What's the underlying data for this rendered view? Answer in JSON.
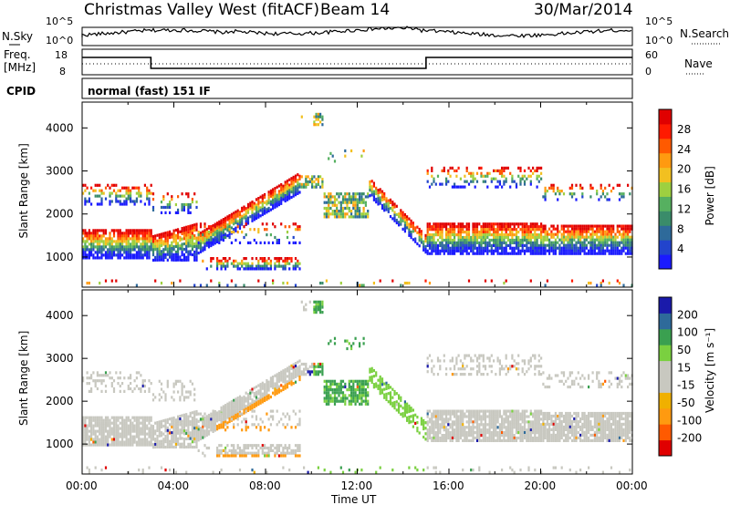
{
  "header": {
    "station": "Christmas Valley West (fitACF)",
    "beam": "Beam 14",
    "date": "30/Mar/2014"
  },
  "noise_panel": {
    "left_label": "N.Sky",
    "right_label": "N.Search",
    "left_ticks": [
      "10^5",
      "10^0"
    ],
    "right_ticks": [
      "10^5",
      "10^0"
    ]
  },
  "freq_panel": {
    "left_label_1": "Freq.",
    "left_label_2": "[MHz]",
    "right_label": "Nave",
    "left_ticks": [
      "18",
      "8"
    ],
    "right_ticks": [
      "60",
      "0"
    ]
  },
  "cpid": {
    "label": "CPID",
    "value": "normal (fast) 151 IF"
  },
  "colors": {
    "power_scale": [
      "#1a1aff",
      "#2244cc",
      "#2e6a9a",
      "#3a8c6a",
      "#56b060",
      "#9ed040",
      "#f2c020",
      "#ff9a10",
      "#ff5a00",
      "#ff1a00",
      "#e00000"
    ],
    "velocity_scale": [
      "#e00000",
      "#ff5a00",
      "#ff9a10",
      "#f0b000",
      "#c8c8c0",
      "#c8c8c0",
      "#7ad040",
      "#3aa050",
      "#2e6a9a",
      "#1a1aaa"
    ]
  },
  "chart_data": [
    {
      "type": "heatmap",
      "name_hint": "power",
      "ylabel": "Slant Range [km]",
      "yticks": [
        1000,
        2000,
        3000,
        4000
      ],
      "ylim": [
        300,
        4600
      ],
      "xlim": [
        0,
        24
      ],
      "colorbar": {
        "label": "Power [dB]",
        "ticks": [
          "4",
          "8",
          "12",
          "16",
          "20",
          "24",
          "28"
        ],
        "range": [
          0,
          30
        ]
      }
    },
    {
      "type": "heatmap",
      "name_hint": "velocity",
      "ylabel": "Slant Range [km]",
      "yticks": [
        1000,
        2000,
        3000,
        4000
      ],
      "ylim": [
        300,
        4600
      ],
      "xlim": [
        0,
        24
      ],
      "colorbar": {
        "label": "Velocity [m s⁻¹]",
        "ticks": [
          "-200",
          "-100",
          "-50",
          "-15",
          "15",
          "50",
          "100",
          "200"
        ]
      }
    }
  ],
  "x_axis": {
    "label": "Time UT",
    "ticks": [
      "00:00",
      "04:00",
      "08:00",
      "12:00",
      "16:00",
      "20:00",
      "00:00"
    ]
  }
}
